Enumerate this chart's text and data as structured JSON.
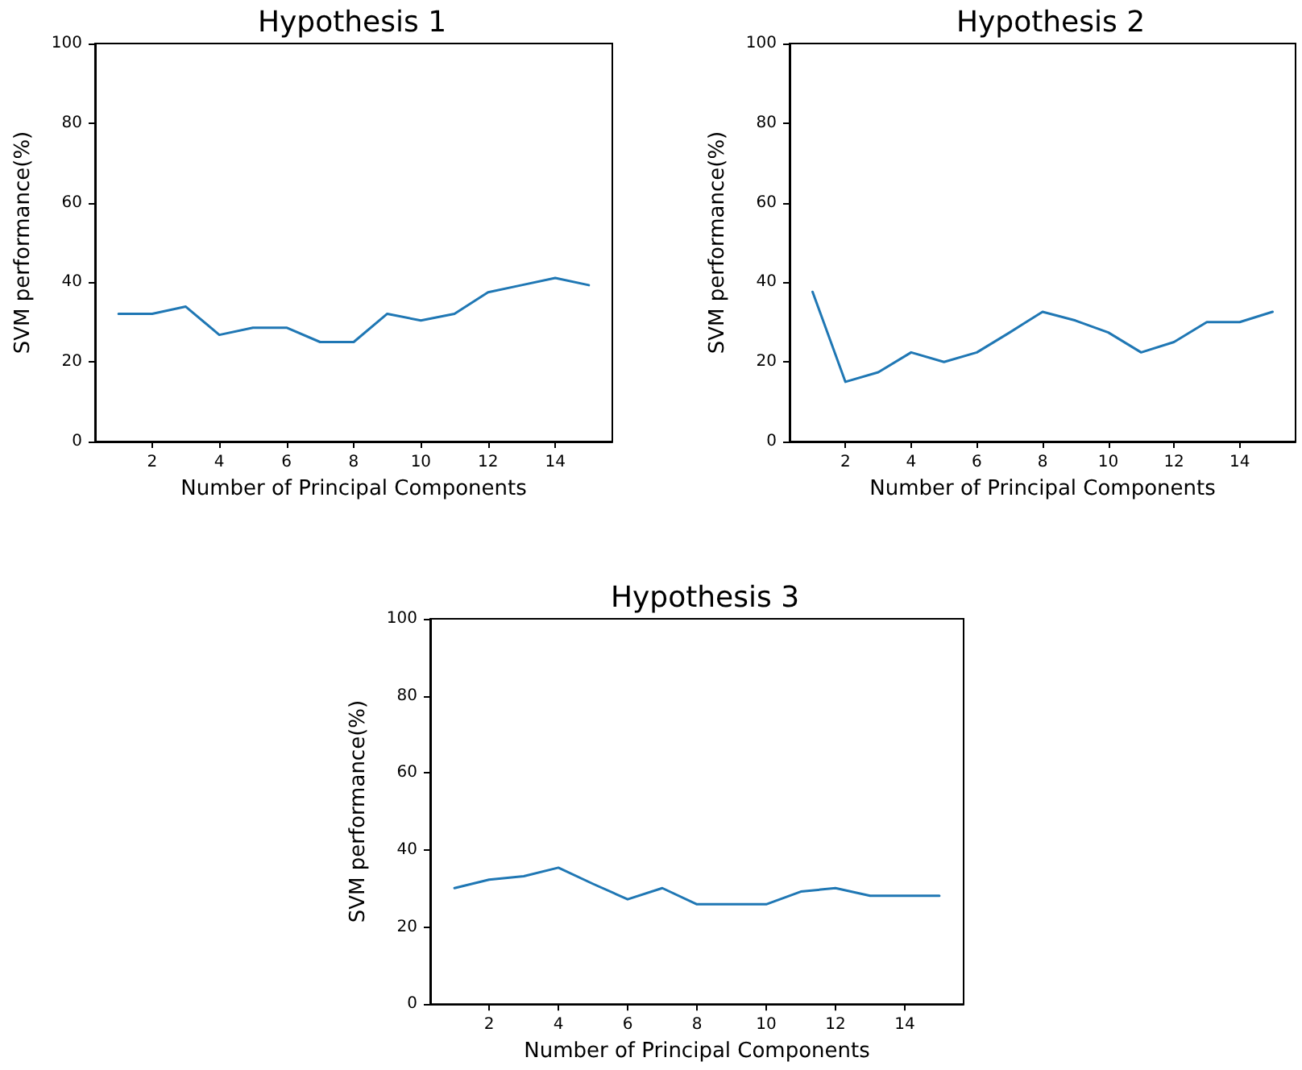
{
  "chart_data": [
    {
      "type": "line",
      "title": "Hypothesis 1",
      "xlabel": "Number of Principal Components",
      "ylabel": "SVM performance(%)",
      "x": [
        1,
        2,
        3,
        4,
        5,
        6,
        7,
        8,
        9,
        10,
        11,
        12,
        13,
        14,
        15
      ],
      "values": [
        32.1,
        32.1,
        33.9,
        26.8,
        28.6,
        28.6,
        25,
        25,
        32.1,
        30.4,
        32.1,
        37.5,
        39.3,
        41.1,
        39.3
      ],
      "color": "#1f77b4",
      "xlim": [
        0.3,
        15.7
      ],
      "xticks": [
        2,
        4,
        6,
        8,
        10,
        12,
        14
      ],
      "ylim": [
        0,
        100
      ],
      "yticks": [
        0,
        20,
        40,
        60,
        80,
        100
      ]
    },
    {
      "type": "line",
      "title": "Hypothesis 2",
      "xlabel": "Number of Principal Components",
      "ylabel": "SVM performance(%)",
      "x": [
        1,
        2,
        3,
        4,
        5,
        6,
        7,
        8,
        9,
        10,
        11,
        12,
        13,
        14,
        15
      ],
      "values": [
        37.6,
        15,
        17.4,
        22.4,
        20,
        22.4,
        27.4,
        32.6,
        30.4,
        27.4,
        22.4,
        25,
        30,
        30,
        32.6
      ],
      "color": "#1f77b4",
      "xlim": [
        0.3,
        15.7
      ],
      "xticks": [
        2,
        4,
        6,
        8,
        10,
        12,
        14
      ],
      "ylim": [
        0,
        100
      ],
      "yticks": [
        0,
        20,
        40,
        60,
        80,
        100
      ]
    },
    {
      "type": "line",
      "title": "Hypothesis 3",
      "xlabel": "Number of Principal Components",
      "ylabel": "SVM performance(%)",
      "x": [
        1,
        2,
        3,
        4,
        5,
        6,
        7,
        8,
        9,
        10,
        11,
        12,
        13,
        14,
        15
      ],
      "values": [
        30.1,
        32.3,
        33.2,
        35.4,
        31.2,
        27.2,
        30.1,
        25.9,
        25.9,
        25.9,
        29.2,
        30.1,
        28.1,
        28.1,
        28.1
      ],
      "color": "#1f77b4",
      "xlim": [
        0.3,
        15.7
      ],
      "xticks": [
        2,
        4,
        6,
        8,
        10,
        12,
        14
      ],
      "ylim": [
        0,
        100
      ],
      "yticks": [
        0,
        20,
        40,
        60,
        80,
        100
      ]
    }
  ]
}
